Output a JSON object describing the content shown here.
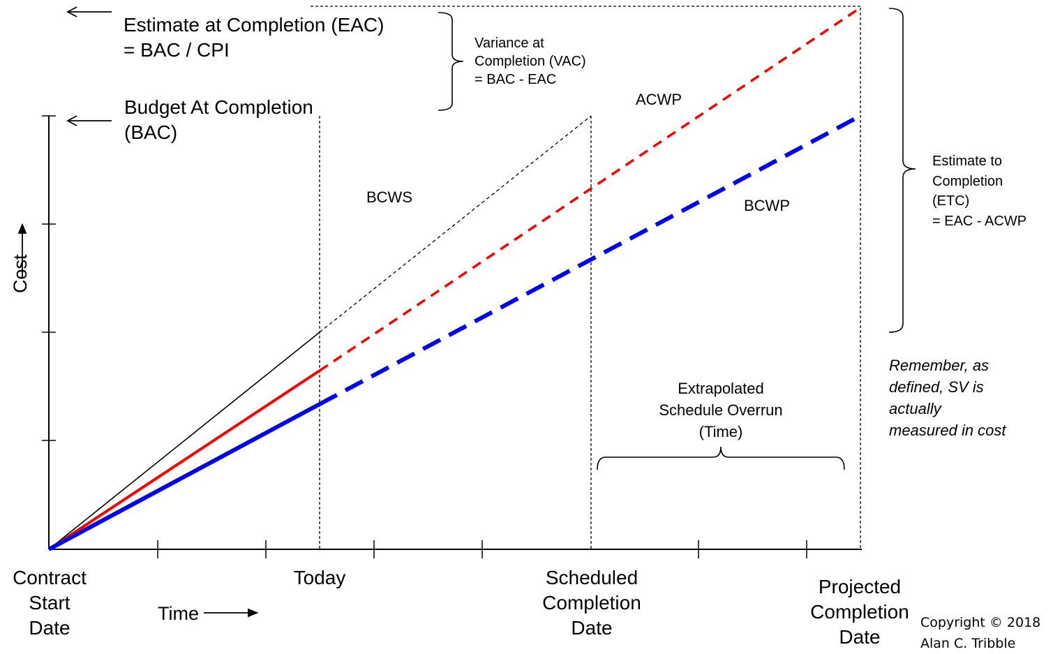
{
  "header": {
    "eac_line1": "Estimate at Completion (EAC)",
    "eac_line2": "= BAC / CPI",
    "bac_line1": "Budget At Completion",
    "bac_line2": "(BAC)",
    "vac_lines": [
      "Variance at",
      "Completion (VAC)",
      "= BAC - EAC"
    ]
  },
  "etc_lines": [
    "Estimate to",
    "Completion",
    "(ETC)",
    "= EAC - ACWP"
  ],
  "curves": {
    "acwp": "ACWP",
    "bcws": "BCWS",
    "bcwp": "BCWP"
  },
  "overrun_lines": [
    "Extrapolated",
    "Schedule Overrun",
    "(Time)"
  ],
  "note_lines": [
    "Remember, as",
    "defined, SV is",
    "actually",
    "measured in cost"
  ],
  "axes": {
    "y_label": "Cost",
    "x_label": "Time",
    "x_markers": [
      {
        "lines": [
          "Contract",
          "Start",
          "Date"
        ]
      },
      {
        "lines": [
          "Today"
        ]
      },
      {
        "lines": [
          "Scheduled",
          "Completion",
          "Date"
        ]
      },
      {
        "lines": [
          "Projected",
          "Completion",
          "Date"
        ]
      }
    ]
  },
  "copyright_lines": [
    "Copyright © 2018",
    "Alan C. Tribble"
  ],
  "colors": {
    "acwp": "#ff0000",
    "bcwp": "#0000ee",
    "bcws": "#000000"
  }
}
